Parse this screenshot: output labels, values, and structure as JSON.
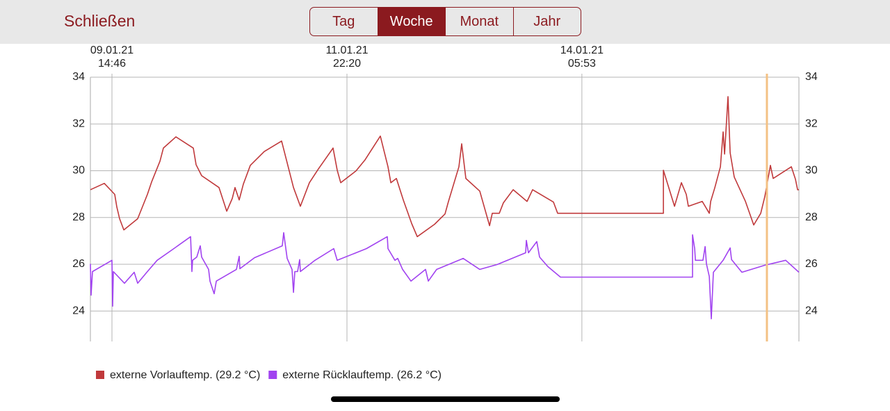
{
  "header": {
    "close": "Schließen",
    "tabs": [
      "Tag",
      "Woche",
      "Monat",
      "Jahr"
    ],
    "selected": 1
  },
  "chart_data": {
    "type": "line",
    "xlim": [
      "2021-01-09T09:40",
      "2021-01-16T09:12"
    ],
    "xticks": [
      {
        "value": "2021-01-09T14:46",
        "label": [
          "09.01.21",
          "14:46"
        ]
      },
      {
        "value": "2021-01-11T22:20",
        "label": [
          "11.01.21",
          "22:20"
        ]
      },
      {
        "value": "2021-01-14T05:53",
        "label": [
          "14.01.21",
          "05:53"
        ]
      }
    ],
    "ylim": [
      22.7,
      34
    ],
    "yticks": [
      24,
      26,
      28,
      30,
      32,
      34
    ],
    "grid": true,
    "cursor": "2021-01-16T01:38",
    "cursor_color": "#f3c184",
    "series": [
      {
        "name": "externe Vorlauftemp. (29.2 °C)",
        "color": "#c0393b",
        "x": [
          "2021-01-09T09:40",
          "2021-01-09T12:57",
          "2021-01-09T15:25",
          "2021-01-09T15:55",
          "2021-01-09T16:34",
          "2021-01-09T17:34",
          "2021-01-09T20:51",
          "2021-01-09T23:09",
          "2021-01-10T00:08",
          "2021-01-10T02:07",
          "2021-01-10T02:56",
          "2021-01-10T05:53",
          "2021-01-10T10:00",
          "2021-01-10T10:39",
          "2021-01-10T11:58",
          "2021-01-10T16:05",
          "2021-01-10T17:54",
          "2021-01-10T19:12",
          "2021-01-10T19:52",
          "2021-01-10T20:51",
          "2021-01-10T21:50",
          "2021-01-10T23:29",
          "2021-01-11T02:46",
          "2021-01-11T06:53",
          "2021-01-11T09:41",
          "2021-01-11T11:19",
          "2021-01-11T13:27",
          "2021-01-11T15:36",
          "2021-01-11T19:03",
          "2021-01-11T20:02",
          "2021-01-11T20:51",
          "2021-01-12T00:28",
          "2021-01-12T02:37",
          "2021-01-12T06:14",
          "2021-01-12T08:02",
          "2021-01-12T08:42",
          "2021-01-12T10:01",
          "2021-01-12T11:39",
          "2021-01-12T13:38",
          "2021-01-12T14:57",
          "2021-01-12T19:03",
          "2021-01-12T21:31",
          "2021-01-12T22:20",
          "2021-01-13T00:48",
          "2021-01-13T01:28",
          "2021-01-13T02:27",
          "2021-01-13T05:44",
          "2021-01-13T08:03",
          "2021-01-13T08:42",
          "2021-01-13T10:21",
          "2021-01-13T11:20",
          "2021-01-13T13:38",
          "2021-01-13T16:55",
          "2021-01-13T18:14",
          "2021-01-13T23:10",
          "2021-01-14T00:09",
          "2021-01-15T01:09",
          "2021-01-15T01:09",
          "2021-01-15T03:47",
          "2021-01-15T05:25",
          "2021-01-15T06:34",
          "2021-01-15T07:04",
          "2021-01-15T10:21",
          "2021-01-15T12:00",
          "2021-01-15T12:20",
          "2021-01-15T13:19",
          "2021-01-15T14:38",
          "2021-01-15T15:17",
          "2021-01-15T15:37",
          "2021-01-15T16:26",
          "2021-01-15T16:56",
          "2021-01-15T17:55",
          "2021-01-15T20:33",
          "2021-01-15T22:31",
          "2021-01-16T00:10",
          "2021-01-16T01:09",
          "2021-01-16T02:28",
          "2021-01-16T03:07",
          "2021-01-16T07:24",
          "2021-01-16T08:23",
          "2021-01-16T08:53",
          "2021-01-16T09:12"
        ],
        "values": [
          29.19,
          29.46,
          28.99,
          28.45,
          27.95,
          27.47,
          27.95,
          28.99,
          29.52,
          30.41,
          30.97,
          31.45,
          30.97,
          30.26,
          29.79,
          29.28,
          28.27,
          28.81,
          29.28,
          28.75,
          29.43,
          30.23,
          30.82,
          31.27,
          29.28,
          28.48,
          29.49,
          30.08,
          30.97,
          30.02,
          29.49,
          29.99,
          30.47,
          31.48,
          30.17,
          29.49,
          29.67,
          28.75,
          27.74,
          27.18,
          27.71,
          28.15,
          28.69,
          30.17,
          31.15,
          29.67,
          29.13,
          27.65,
          28.18,
          28.18,
          28.63,
          29.19,
          28.69,
          29.19,
          28.66,
          28.18,
          28.18,
          30.02,
          28.48,
          29.49,
          28.99,
          28.48,
          28.69,
          28.18,
          28.69,
          29.28,
          30.17,
          31.66,
          30.71,
          33.17,
          30.77,
          29.73,
          28.69,
          27.68,
          28.18,
          28.9,
          30.23,
          29.67,
          30.17,
          29.64,
          29.19,
          29.19
        ]
      },
      {
        "name": "externe Rücklauftemp. (26.2 °C)",
        "color": "#a143f0",
        "x": [
          "2021-01-09T09:40",
          "2021-01-09T09:50",
          "2021-01-09T10:10",
          "2021-01-09T14:46",
          "2021-01-09T14:56",
          "2021-01-09T15:06",
          "2021-01-09T17:43",
          "2021-01-09T20:01",
          "2021-01-09T20:51",
          "2021-01-09T23:09",
          "2021-01-10T01:27",
          "2021-01-10T05:24",
          "2021-01-10T09:21",
          "2021-01-10T09:40",
          "2021-01-10T09:50",
          "2021-01-10T10:49",
          "2021-01-10T11:39",
          "2021-01-10T11:58",
          "2021-01-10T13:37",
          "2021-01-10T13:57",
          "2021-01-10T14:56",
          "2021-01-10T15:26",
          "2021-01-10T20:12",
          "2021-01-10T20:51",
          "2021-01-10T21:01",
          "2021-01-11T00:28",
          "2021-01-11T07:03",
          "2021-01-11T07:22",
          "2021-01-11T08:12",
          "2021-01-11T09:21",
          "2021-01-11T09:41",
          "2021-01-11T10:00",
          "2021-01-11T10:40",
          "2021-01-11T11:09",
          "2021-01-11T11:19",
          "2021-01-11T14:46",
          "2021-01-11T19:13",
          "2021-01-11T20:02",
          "2021-01-12T02:56",
          "2021-01-12T07:52",
          "2021-01-12T08:02",
          "2021-01-12T09:41",
          "2021-01-12T10:20",
          "2021-01-12T11:29",
          "2021-01-12T13:28",
          "2021-01-12T16:55",
          "2021-01-12T17:34",
          "2021-01-12T19:33",
          "2021-01-13T01:48",
          "2021-01-13T05:44",
          "2021-01-13T09:51",
          "2021-01-13T16:35",
          "2021-01-13T16:45",
          "2021-01-13T17:15",
          "2021-01-13T19:13",
          "2021-01-13T19:53",
          "2021-01-13T21:51",
          "2021-01-14T00:49",
          "2021-01-15T08:03",
          "2021-01-15T08:03",
          "2021-01-15T08:33",
          "2021-01-15T08:43",
          "2021-01-15T10:31",
          "2021-01-15T11:01",
          "2021-01-15T11:20",
          "2021-01-15T12:00",
          "2021-01-15T12:29",
          "2021-01-15T12:59",
          "2021-01-15T15:17",
          "2021-01-15T16:56",
          "2021-01-15T17:16",
          "2021-01-15T19:43",
          "2021-01-16T01:09",
          "2021-01-16T06:05",
          "2021-01-16T09:12"
        ],
        "values": [
          26.02,
          24.68,
          25.69,
          26.17,
          24.21,
          25.69,
          25.19,
          25.66,
          25.19,
          25.69,
          26.17,
          26.67,
          27.18,
          25.69,
          26.17,
          26.31,
          26.79,
          26.31,
          25.78,
          25.28,
          24.74,
          25.28,
          25.78,
          26.34,
          25.81,
          26.28,
          26.79,
          27.35,
          26.25,
          25.78,
          24.8,
          25.69,
          25.69,
          26.2,
          25.69,
          26.17,
          26.67,
          26.17,
          26.67,
          27.18,
          26.67,
          26.17,
          26.25,
          25.78,
          25.28,
          25.78,
          25.28,
          25.78,
          26.25,
          25.78,
          25.99,
          26.49,
          27.02,
          26.49,
          26.97,
          26.31,
          25.9,
          25.45,
          25.45,
          27.26,
          26.67,
          26.17,
          26.17,
          26.76,
          26.02,
          25.48,
          23.67,
          25.66,
          26.17,
          26.7,
          26.2,
          25.66,
          25.96,
          26.17,
          25.66
        ]
      }
    ]
  }
}
